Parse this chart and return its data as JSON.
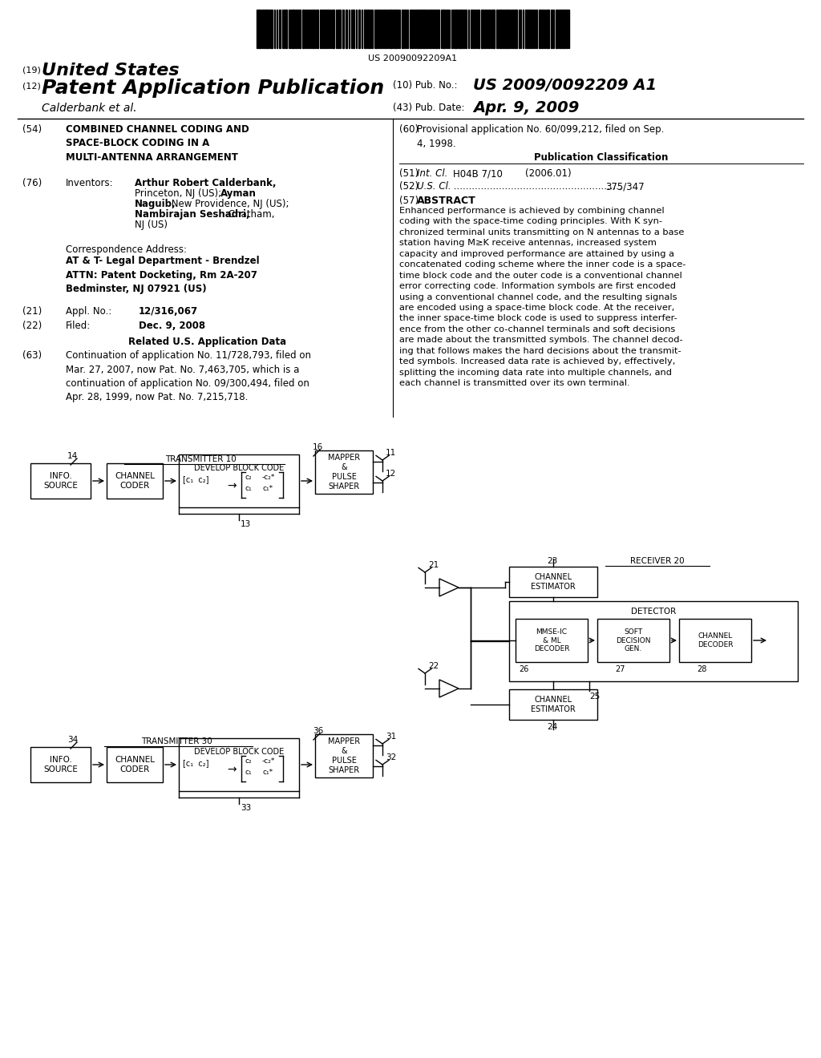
{
  "bg_color": "#ffffff",
  "barcode_text": "US 20090092209A1",
  "header_19_text": "United States",
  "header_12_text": "Patent Application Publication",
  "pub_no": "US 2009/0092209 A1",
  "calderbank": "Calderbank et al.",
  "pub_date": "Apr. 9, 2009",
  "field54_title": "COMBINED CHANNEL CODING AND\nSPACE-BLOCK CODING IN A\nMULTI-ANTENNA ARRANGEMENT",
  "field60_text": "Provisional application No. 60/099,212, filed on Sep.\n4, 1998.",
  "pub_class_title": "Publication Classification",
  "field51_class": "H04B 7/10",
  "field51_year": "(2006.01)",
  "field52_value": "375/347",
  "field57_label": "ABSTRACT",
  "abstract_text": "Enhanced performance is achieved by combining channel\ncoding with the space-time coding principles. With K syn-\nchronized terminal units transmitting on N antennas to a base\nstation having M≥K receive antennas, increased system\ncapacity and improved performance are attained by using a\nconcatenated coding scheme where the inner code is a space-\ntime block code and the outer code is a conventional channel\nerror correcting code. Information symbols are first encoded\nusing a conventional channel code, and the resulting signals\nare encoded using a space-time block code. At the receiver,\nthe inner space-time block code is used to suppress interfer-\nence from the other co-channel terminals and soft decisions\nare made about the transmitted symbols. The channel decod-\ning that follows makes the hard decisions about the transmit-\nted symbols. Increased data rate is achieved by, effectively,\nsplitting the incoming data rate into multiple channels, and\neach channel is transmitted over its own terminal.",
  "corr_addr": "Correspondence Address:",
  "corr_bold": "AT & T- Legal Department - Brendzel\nATTN: Patent Docketing, Rm 2A-207\nBedminster, NJ 07921 (US)",
  "field21_value": "12/316,067",
  "field22_value": "Dec. 9, 2008",
  "related_title": "Related U.S. Application Data",
  "field63_text": "Continuation of application No. 11/728,793, filed on\nMar. 27, 2007, now Pat. No. 7,463,705, which is a\ncontinuation of application No. 09/300,494, filed on\nApr. 28, 1999, now Pat. No. 7,215,718."
}
